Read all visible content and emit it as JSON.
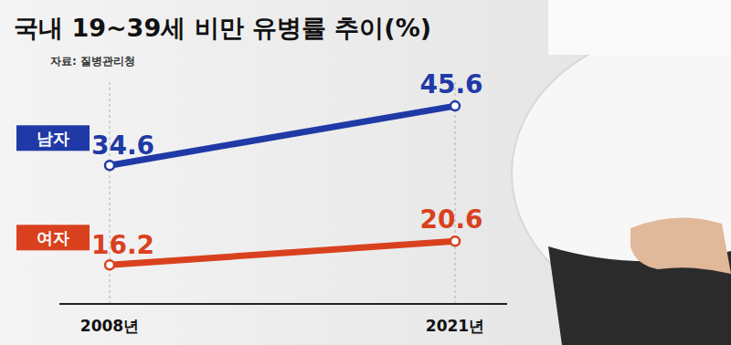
{
  "chart_data": {
    "type": "line",
    "title": "국내 19~39세 비만 유병률 추이(%)",
    "subtitle": "자료: 질병관리청",
    "categories": [
      "2008년",
      "2021년"
    ],
    "series": [
      {
        "name": "남자",
        "color": "#1f3aa6",
        "values": [
          34.6,
          45.6
        ],
        "marker": "circle"
      },
      {
        "name": "여자",
        "color": "#d9411e",
        "values": [
          16.2,
          20.6
        ],
        "marker": "circle"
      }
    ],
    "ylim": [
      9,
      50
    ],
    "tick_labels": "x",
    "data_labels": true,
    "grid": false
  }
}
